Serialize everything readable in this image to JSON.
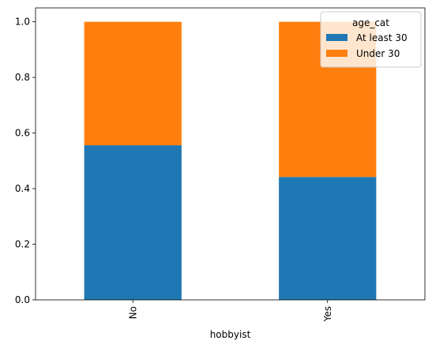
{
  "chart_data": {
    "type": "bar",
    "stacked": true,
    "categories": [
      "No",
      "Yes"
    ],
    "series": [
      {
        "name": "At least 30",
        "values": [
          0.556,
          0.442
        ],
        "color": "#1f77b4"
      },
      {
        "name": "Under 30",
        "values": [
          0.444,
          0.558
        ],
        "color": "#ff7f0e"
      }
    ],
    "xlabel": "hobbyist",
    "ylabel": "",
    "ylim": [
      0,
      1.05
    ],
    "yticks": [
      "0.0",
      "0.2",
      "0.4",
      "0.6",
      "0.8",
      "1.0"
    ],
    "legend": {
      "title": "age_cat",
      "placement": "top-right"
    },
    "grid": false
  }
}
